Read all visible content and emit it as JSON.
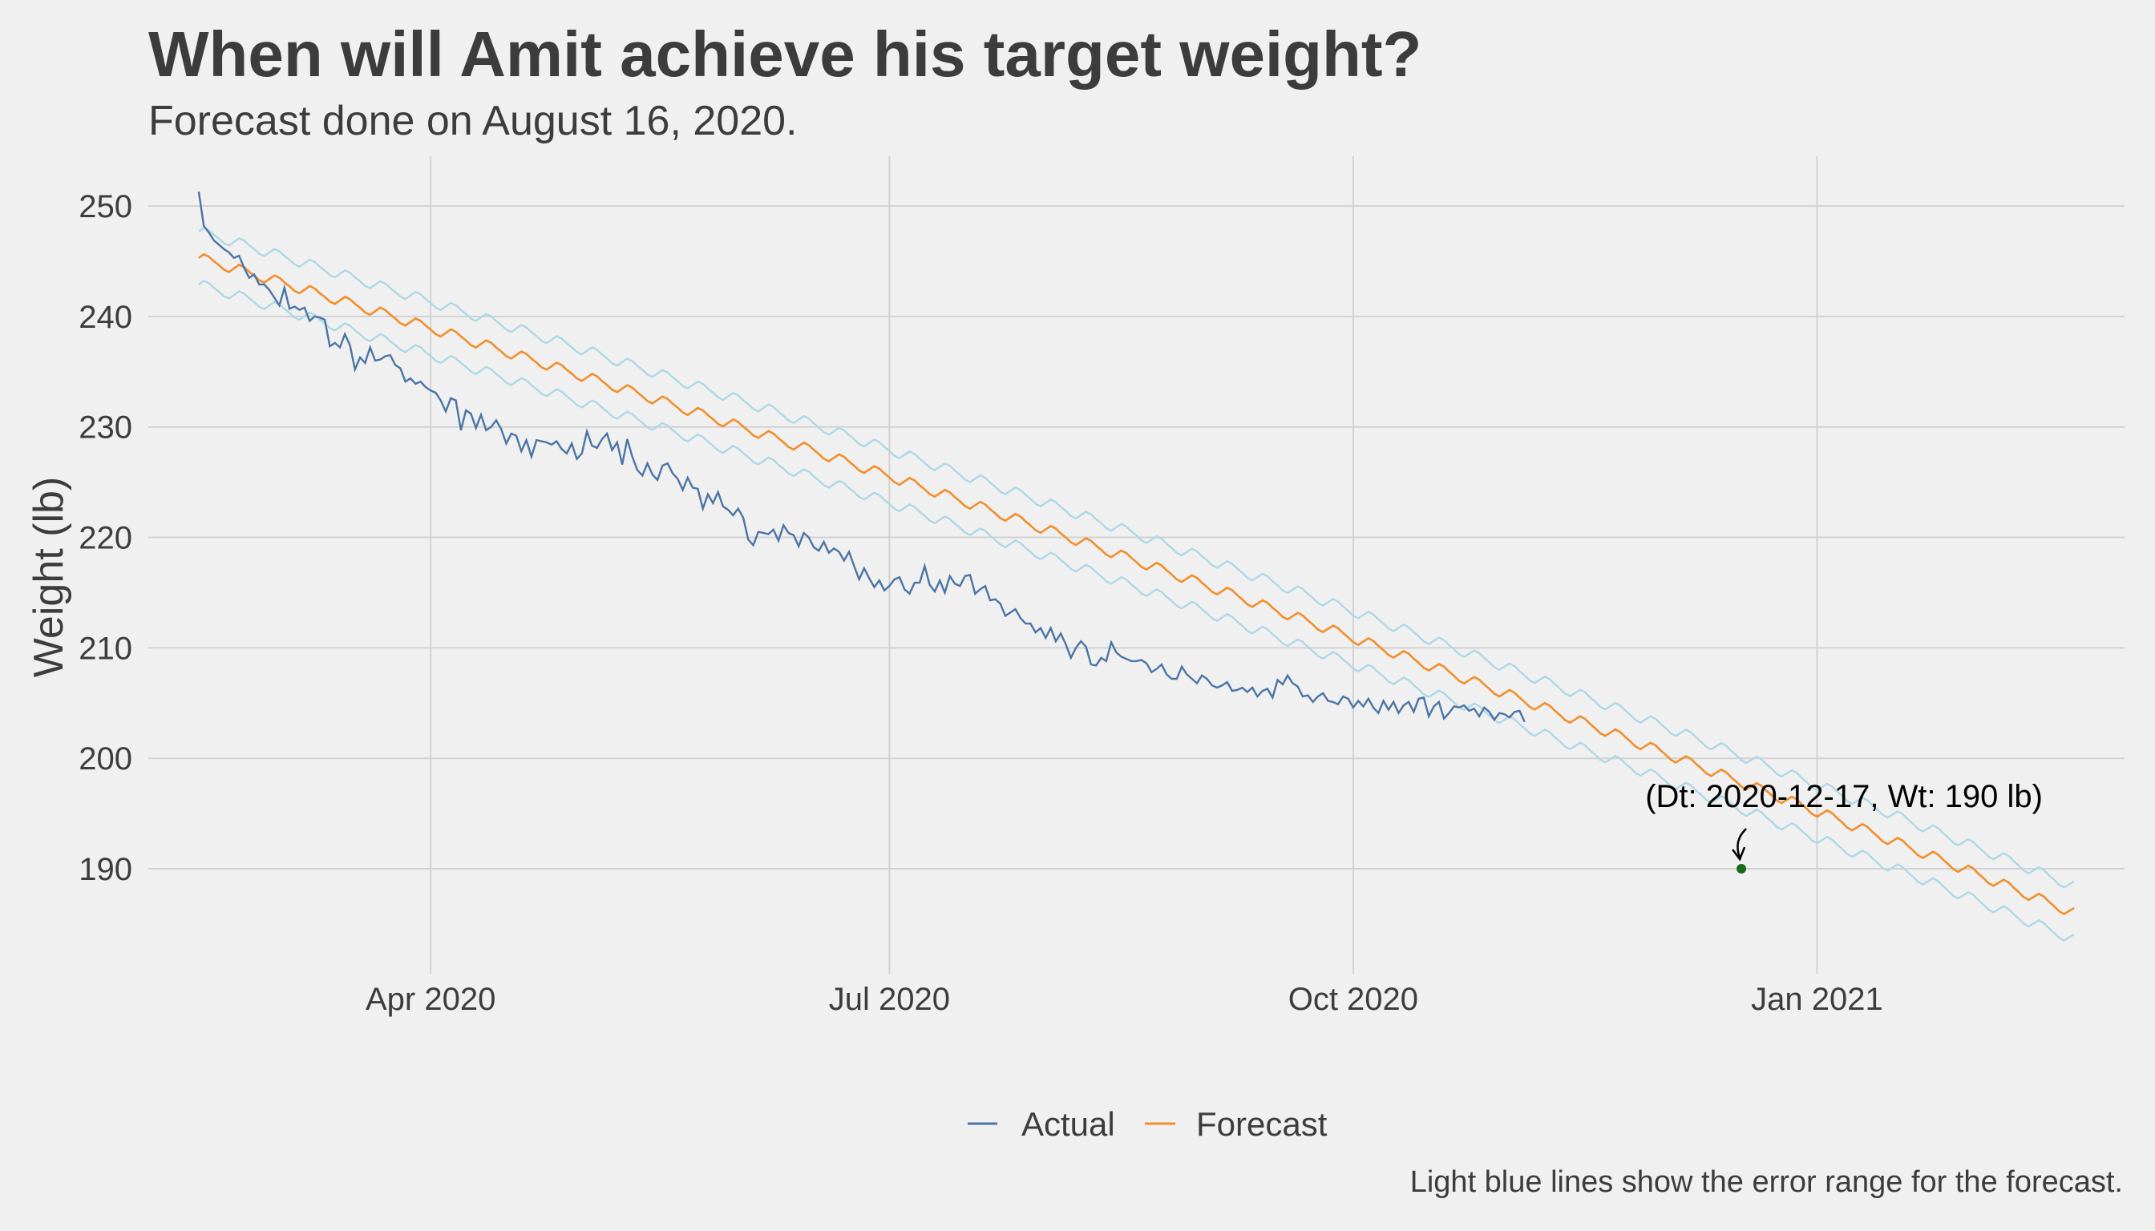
{
  "chart_data": {
    "type": "line",
    "title": "When will Amit achieve his target weight?",
    "subtitle": "Forecast done on August 16, 2020.",
    "ylabel": "Weight (lb)",
    "xlabel": "",
    "x_tick_labels": [
      "Apr 2020",
      "Jul 2020",
      "Oct 2020",
      "Jan 2021"
    ],
    "x_tick_dates": [
      "2020-04-01",
      "2020-07-01",
      "2020-10-01",
      "2021-01-01"
    ],
    "y_ticks": [
      190,
      200,
      210,
      220,
      230,
      240,
      250
    ],
    "xlim": [
      "2020-02-05",
      "2021-03-03"
    ],
    "ylim": [
      180.5,
      254.5
    ],
    "grid": true,
    "legend_position": "bottom",
    "caption": "Light blue lines show the error range for the forecast.",
    "annotation": {
      "text": "(Dt: 2020-12-17, Wt: 190 lb)",
      "date": "2020-12-17",
      "weight": 190,
      "marker_color": "#1a6b1a"
    },
    "series": [
      {
        "name": "Actual",
        "color": "#4a74a5",
        "start_date": "2020-02-15",
        "values": [
          251.3,
          248.2,
          247.6,
          246.9,
          246.5,
          246.1,
          245.8,
          245.3,
          245.5,
          244.4,
          243.5,
          243.8,
          242.9,
          242.9,
          242.4,
          241.7,
          241,
          242.6,
          240.7,
          240.9,
          240.6,
          240.8,
          239.6,
          240,
          239.9,
          239.7,
          237.3,
          237.6,
          237.2,
          238.4,
          237.4,
          235.2,
          236.3,
          235.8,
          237.2,
          236,
          236.1,
          236.4,
          236.5,
          235.6,
          235.3,
          234.1,
          234.4,
          233.9,
          234.1,
          233.6,
          233.3,
          233.1,
          232.4,
          231.4,
          232.6,
          232.4,
          229.7,
          231.5,
          231.2,
          229.9,
          231.1,
          229.7,
          230,
          230.6,
          229.8,
          228.5,
          229.4,
          229.2,
          227.8,
          228.8,
          227.3,
          228.8,
          228.7,
          228.6,
          228.4,
          228.7,
          228,
          227.6,
          228.5,
          227.1,
          227.6,
          229.6,
          228.3,
          228.1,
          228.9,
          229.4,
          227.9,
          228.6,
          226.6,
          228.9,
          227.3,
          226.1,
          225.6,
          226.7,
          225.7,
          225.2,
          226.5,
          226.7,
          225.8,
          225.3,
          224.3,
          225.4,
          224.5,
          224.4,
          222.6,
          223.9,
          223.1,
          224.1,
          222.8,
          222.5,
          222,
          222.6,
          221.8,
          219.8,
          219.3,
          220.5,
          220.4,
          220.3,
          220.7,
          219.7,
          221.1,
          220.4,
          220.2,
          219.2,
          220.4,
          220,
          219.1,
          218.8,
          219.6,
          218.6,
          219,
          218.7,
          217.9,
          218.7,
          217.4,
          216.2,
          217.2,
          216.3,
          215.5,
          216.1,
          215.2,
          215.6,
          216.2,
          216.4,
          215.3,
          214.9,
          215.9,
          215.9,
          217.4,
          215.7,
          215.1,
          216.1,
          215,
          216.5,
          215.8,
          215.6,
          216.5,
          216.6,
          214.9,
          215.3,
          215.6,
          214.3,
          214.4,
          214,
          212.9,
          213.2,
          213.5,
          212.7,
          212.2,
          212.2,
          211.4,
          211.8,
          210.9,
          211.8,
          210.6,
          211.3,
          210.3,
          209.1,
          210,
          210.6,
          210.1,
          208.5,
          208.4,
          209.1,
          208.8,
          210.5,
          209.6,
          209.2,
          209,
          208.8,
          208.8,
          208.9,
          208.6,
          207.8,
          208.1,
          208.5,
          207.6,
          207.2,
          207.2,
          208.3,
          207.6,
          207.2,
          206.8,
          207.5,
          207.2,
          206.6,
          206.4,
          206.6,
          206.9,
          206.1,
          206.2,
          206.4,
          206,
          206.4,
          205.6,
          206.1,
          206.3,
          205.5,
          207.1,
          206.7,
          207.5,
          206.8,
          206.5,
          205.6,
          205.7,
          205.1,
          205.6,
          205.9,
          205.2,
          205.1,
          204.9,
          205.6,
          205.4,
          204.6,
          205.2,
          204.7,
          205.4,
          204.6,
          204.1,
          205.2,
          204.4,
          205.1,
          204.1,
          204.8,
          205.1,
          204.2,
          205.4,
          205.5,
          203.8,
          204.7,
          205.1,
          203.6,
          204.1,
          204.7,
          204.6,
          204.8,
          204.3,
          204.5,
          203.8,
          204.6,
          204.2,
          203.5,
          204.1,
          204,
          203.7,
          204.2,
          204.3,
          203.3
        ]
      },
      {
        "name": "Forecast",
        "color": "#f28e2b",
        "start_date": "2020-02-15",
        "end_date": "2021-02-21",
        "start_value": 245.3,
        "end_value": 186,
        "weekly_amplitude": 0.45,
        "band_offset": 2.4,
        "band_color": "#add8e6"
      }
    ]
  },
  "legend": {
    "items": [
      {
        "label": "Actual",
        "color": "#4a74a5"
      },
      {
        "label": "Forecast",
        "color": "#f28e2b"
      }
    ]
  }
}
